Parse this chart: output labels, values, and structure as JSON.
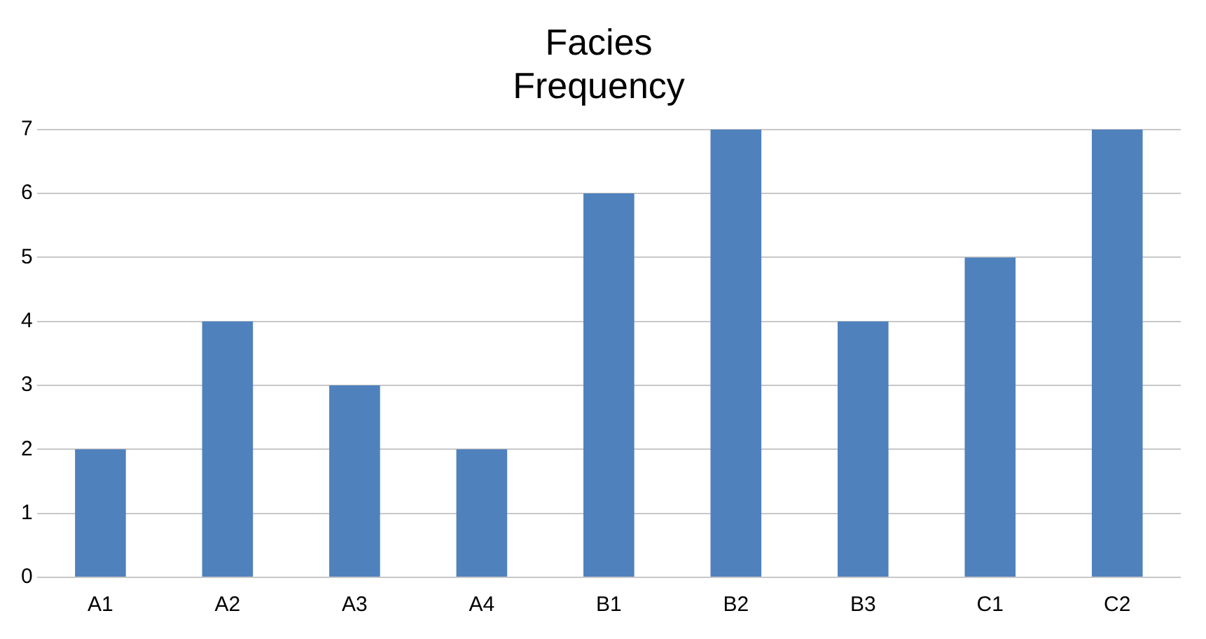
{
  "chart_data": {
    "type": "bar",
    "title": "Facies\nFrequency",
    "categories": [
      "A1",
      "A2",
      "A3",
      "A4",
      "B1",
      "B2",
      "B3",
      "C1",
      "C2"
    ],
    "values": [
      2,
      4,
      3,
      2,
      6,
      7,
      4,
      5,
      7
    ],
    "color": "#4f81bd",
    "ylim": [
      0,
      7
    ],
    "yticks": [
      0,
      1,
      2,
      3,
      4,
      5,
      6,
      7
    ],
    "grid": "y"
  }
}
